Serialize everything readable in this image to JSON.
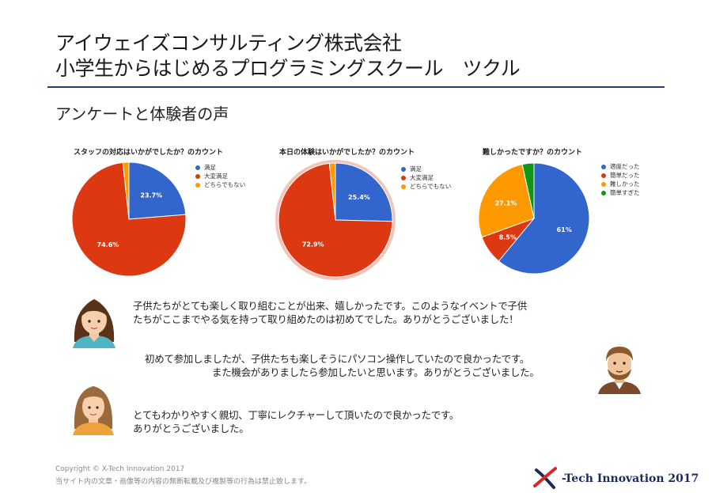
{
  "header": {
    "company": "アイウェイズコンサルティング株式会社",
    "school": "小学生からはじめるプログラミングスクール　ツクル",
    "section": "アンケートと体験者の声"
  },
  "colors": {
    "blue": "#3366cc",
    "red": "#dc3912",
    "orange": "#ff9900",
    "green": "#109618",
    "rule": "#2c3e70"
  },
  "chart_data": [
    {
      "type": "pie",
      "title": "スタッフの対応はいかがでしたか？のカウント",
      "labels": [
        "満足",
        "大変満足",
        "どちらでもない"
      ],
      "values": [
        23.7,
        74.6,
        1.7
      ],
      "value_labels": [
        "23.7%",
        "74.6%",
        ""
      ],
      "colors": [
        "#3366cc",
        "#dc3912",
        "#ff9900"
      ]
    },
    {
      "type": "pie",
      "title": "本日の体験はいかがでしたか？のカウント",
      "labels": [
        "満足",
        "大変満足",
        "どちらでもない"
      ],
      "values": [
        25.4,
        72.9,
        1.7
      ],
      "value_labels": [
        "25.4%",
        "72.9%",
        ""
      ],
      "colors": [
        "#3366cc",
        "#dc3912",
        "#ff9900"
      ],
      "highlight": "大変満足"
    },
    {
      "type": "pie",
      "title": "難しかったですか？のカウント",
      "labels": [
        "適度だった",
        "簡単だった",
        "難しかった",
        "簡単すぎた"
      ],
      "values": [
        61,
        8.5,
        27.1,
        3.4
      ],
      "value_labels": [
        "61%",
        "8.5%",
        "27.1%",
        ""
      ],
      "colors": [
        "#3366cc",
        "#dc3912",
        "#ff9900",
        "#109618"
      ]
    }
  ],
  "comments": [
    {
      "lines": [
        "子供たちがとても楽しく取り組むことが出来、嬉しかったです。このようなイベントで子供",
        "たちがここまでやる気を持って取り組めたのは初めてでした。ありがとうございました！"
      ],
      "avatar": "woman-avatar"
    },
    {
      "lines": [
        "初めて参加しましたが、子供たちも楽しそうにパソコン操作していたので良かったです。",
        "また機会がありましたら参加したいと思います。ありがとうございました。"
      ],
      "avatar": "man-avatar"
    },
    {
      "lines": [
        "とてもわかりやすく親切、丁寧にレクチャーして頂いたので良かったです。",
        "ありがとうございました。"
      ],
      "avatar": "girl-avatar"
    }
  ],
  "footer": {
    "copyright": "Copyright ©  X-Tech Innovation 2017",
    "notice": "当サイト内の文章・画像等の内容の無断転載及び複製等の行為は禁止致します。",
    "logo_text": "-Tech Innovation 2017"
  }
}
